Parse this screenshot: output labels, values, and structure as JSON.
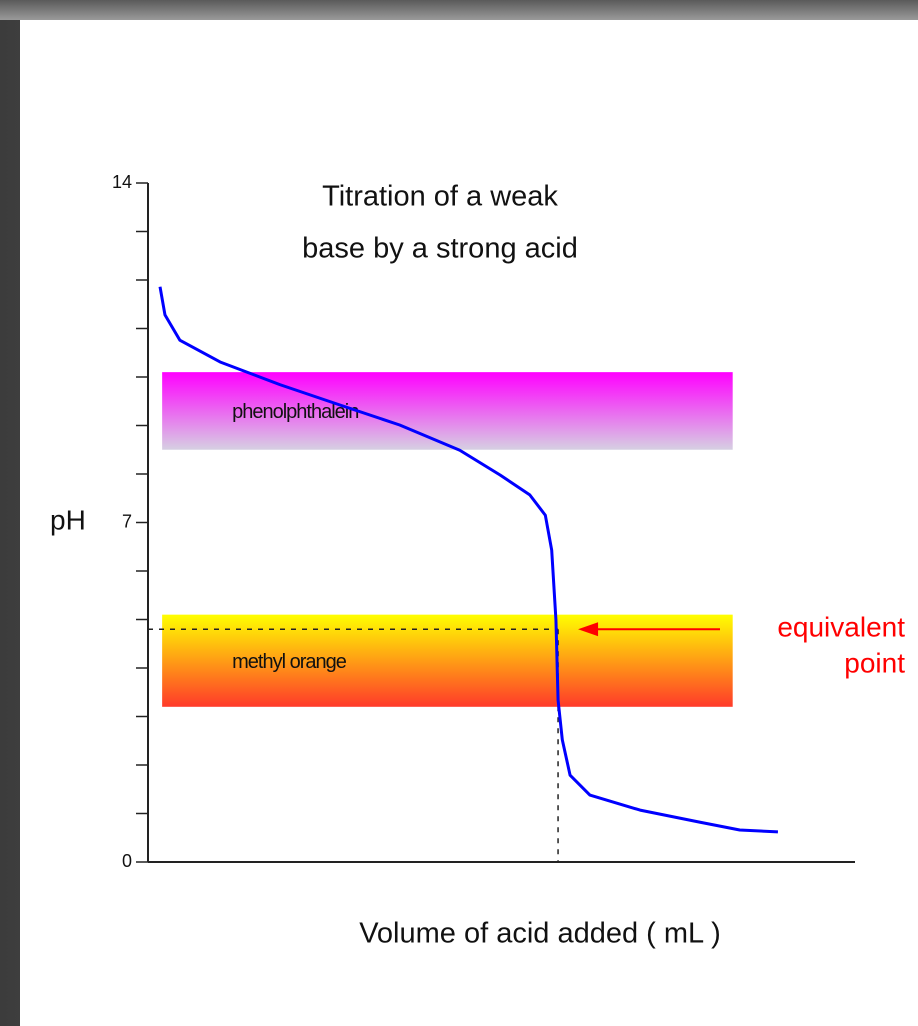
{
  "chart_data": {
    "type": "line",
    "title": [
      "Titration of a weak",
      "base by a strong acid"
    ],
    "y_label": "pH",
    "x_label": "Volume of acid added ( mL )",
    "xlim": [
      0,
      100
    ],
    "ylim": [
      0,
      14
    ],
    "yticks": [
      0,
      7,
      14
    ],
    "minor_yticks": [
      1,
      2,
      3,
      4,
      5,
      6,
      8,
      9,
      10,
      11,
      12,
      13
    ],
    "series": [
      {
        "color": "#0000ff",
        "x": [
          1.7,
          2.4,
          4.5,
          10.2,
          18.7,
          27.2,
          35.6,
          44.1,
          49.8,
          54.0,
          56.2,
          57.1,
          57.7,
          58.0,
          58.6,
          59.7,
          62.5,
          69.6,
          78.1,
          83.7,
          89.1
        ],
        "values": [
          11.86,
          11.28,
          10.76,
          10.31,
          9.84,
          9.42,
          9.01,
          8.49,
          7.98,
          7.57,
          7.15,
          6.43,
          4.99,
          3.34,
          2.52,
          1.79,
          1.38,
          1.07,
          0.82,
          0.66,
          0.62
        ]
      }
    ],
    "bands": [
      {
        "label": "phenolphthalein",
        "range": [
          8.5,
          10.1
        ],
        "xrange": [
          2,
          82.7
        ],
        "colors": [
          "#ff00ff",
          "#d6d0e2"
        ]
      },
      {
        "label": "methyl orange",
        "range": [
          3.2,
          5.1
        ],
        "xrange": [
          2,
          82.7
        ],
        "colors": [
          "#ffff00",
          "#ff3a2a"
        ]
      }
    ],
    "annotation": {
      "text": [
        "equivalent",
        "point"
      ],
      "x": 58,
      "y": 4.8,
      "color": "#ff0000"
    }
  }
}
